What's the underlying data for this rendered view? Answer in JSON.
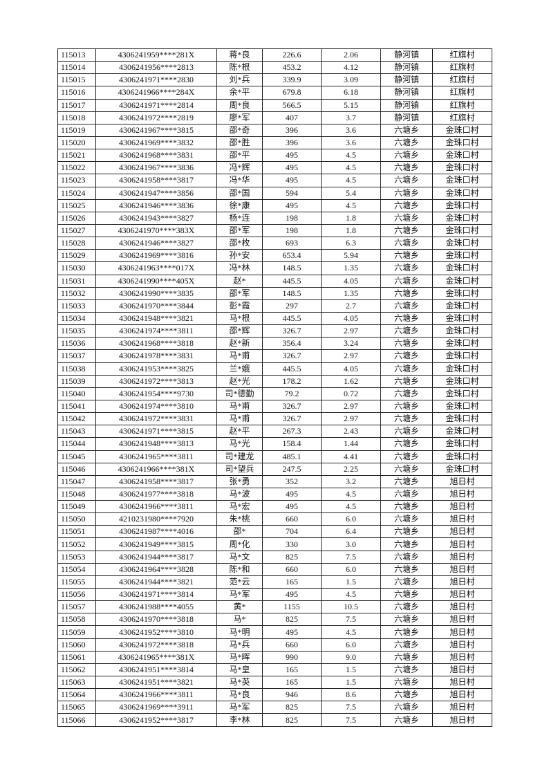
{
  "table": {
    "rows": [
      [
        "115013",
        "4306241959****281X",
        "蒋*良",
        "226.6",
        "2.06",
        "静河镇",
        "红旗村"
      ],
      [
        "115014",
        "4306241956****2813",
        "陈*根",
        "453.2",
        "4.12",
        "静河镇",
        "红旗村"
      ],
      [
        "115015",
        "4306241971****2830",
        "刘*兵",
        "339.9",
        "3.09",
        "静河镇",
        "红旗村"
      ],
      [
        "115016",
        "4306241966****284X",
        "余*平",
        "679.8",
        "6.18",
        "静河镇",
        "红旗村"
      ],
      [
        "115017",
        "4306241971****2814",
        "周*良",
        "566.5",
        "5.15",
        "静河镇",
        "红旗村"
      ],
      [
        "115018",
        "4306241972****2819",
        "廖*军",
        "407",
        "3.7",
        "静河镇",
        "红旗村"
      ],
      [
        "115019",
        "4306241967****3815",
        "邵*奇",
        "396",
        "3.6",
        "六塘乡",
        "金珠口村"
      ],
      [
        "115020",
        "4306241969****3832",
        "邵*胜",
        "396",
        "3.6",
        "六塘乡",
        "金珠口村"
      ],
      [
        "115021",
        "4306241968****3831",
        "邵*平",
        "495",
        "4.5",
        "六塘乡",
        "金珠口村"
      ],
      [
        "115022",
        "4306241967****3836",
        "冯*辉",
        "495",
        "4.5",
        "六塘乡",
        "金珠口村"
      ],
      [
        "115023",
        "4306241958****3817",
        "冯*华",
        "495",
        "4.5",
        "六塘乡",
        "金珠口村"
      ],
      [
        "115024",
        "4306241947****3856",
        "邵*国",
        "594",
        "5.4",
        "六塘乡",
        "金珠口村"
      ],
      [
        "115025",
        "4306241946****3836",
        "徐*康",
        "495",
        "4.5",
        "六塘乡",
        "金珠口村"
      ],
      [
        "115026",
        "4306241943****3827",
        "杨*连",
        "198",
        "1.8",
        "六塘乡",
        "金珠口村"
      ],
      [
        "115027",
        "4306241970****383X",
        "邵*军",
        "198",
        "1.8",
        "六塘乡",
        "金珠口村"
      ],
      [
        "115028",
        "4306241946****3827",
        "邵*枚",
        "693",
        "6.3",
        "六塘乡",
        "金珠口村"
      ],
      [
        "115029",
        "4306241969****3816",
        "孙*安",
        "653.4",
        "5.94",
        "六塘乡",
        "金珠口村"
      ],
      [
        "115030",
        "4306241963****017X",
        "冯*林",
        "148.5",
        "1.35",
        "六塘乡",
        "金珠口村"
      ],
      [
        "115031",
        "4306241990****405X",
        "赵*",
        "445.5",
        "4.05",
        "六塘乡",
        "金珠口村"
      ],
      [
        "115032",
        "4306241990****3835",
        "邵*军",
        "148.5",
        "1.35",
        "六塘乡",
        "金珠口村"
      ],
      [
        "115033",
        "4306241970****3844",
        "彭*霞",
        "297",
        "2.7",
        "六塘乡",
        "金珠口村"
      ],
      [
        "115034",
        "4306241948****3821",
        "马*根",
        "445.5",
        "4.05",
        "六塘乡",
        "金珠口村"
      ],
      [
        "115035",
        "4306241974****3811",
        "邵*辉",
        "326.7",
        "2.97",
        "六塘乡",
        "金珠口村"
      ],
      [
        "115036",
        "4306241968****3818",
        "赵*新",
        "356.4",
        "3.24",
        "六塘乡",
        "金珠口村"
      ],
      [
        "115037",
        "4306241978****3831",
        "马*甫",
        "326.7",
        "2.97",
        "六塘乡",
        "金珠口村"
      ],
      [
        "115038",
        "4306241953****3825",
        "兰*娥",
        "445.5",
        "4.05",
        "六塘乡",
        "金珠口村"
      ],
      [
        "115039",
        "4306241972****3813",
        "赵*光",
        "178.2",
        "1.62",
        "六塘乡",
        "金珠口村"
      ],
      [
        "115040",
        "4306241954****9730",
        "司*德勤",
        "79.2",
        "0.72",
        "六塘乡",
        "金珠口村"
      ],
      [
        "115041",
        "4306241974****3810",
        "马*甫",
        "326.7",
        "2.97",
        "六塘乡",
        "金珠口村"
      ],
      [
        "115042",
        "4306241972****3831",
        "马*甫",
        "326.7",
        "2.97",
        "六塘乡",
        "金珠口村"
      ],
      [
        "115043",
        "4306241971****3815",
        "赵*平",
        "267.3",
        "2.43",
        "六塘乡",
        "金珠口村"
      ],
      [
        "115044",
        "4306241948****3813",
        "马*光",
        "158.4",
        "1.44",
        "六塘乡",
        "金珠口村"
      ],
      [
        "115045",
        "4306241965****3811",
        "司*建龙",
        "485.1",
        "4.41",
        "六塘乡",
        "金珠口村"
      ],
      [
        "115046",
        "4306241966****381X",
        "司*望兵",
        "247.5",
        "2.25",
        "六塘乡",
        "金珠口村"
      ],
      [
        "115047",
        "4306241958****3817",
        "张*勇",
        "352",
        "3.2",
        "六塘乡",
        "旭日村"
      ],
      [
        "115048",
        "4306241977****3818",
        "马*波",
        "495",
        "4.5",
        "六塘乡",
        "旭日村"
      ],
      [
        "115049",
        "4306241966****3811",
        "马*宏",
        "495",
        "4.5",
        "六塘乡",
        "旭日村"
      ],
      [
        "115050",
        "4210231980****7920",
        "朱*桃",
        "660",
        "6.0",
        "六塘乡",
        "旭日村"
      ],
      [
        "115051",
        "4306241987****4016",
        "邵*",
        "704",
        "6.4",
        "六塘乡",
        "旭日村"
      ],
      [
        "115052",
        "4306241949****3815",
        "周*化",
        "330",
        "3.0",
        "六塘乡",
        "旭日村"
      ],
      [
        "115053",
        "4306241944****3817",
        "马*文",
        "825",
        "7.5",
        "六塘乡",
        "旭日村"
      ],
      [
        "115054",
        "4306241964****3828",
        "陈*和",
        "660",
        "6.0",
        "六塘乡",
        "旭日村"
      ],
      [
        "115055",
        "4306241944****3821",
        "范*云",
        "165",
        "1.5",
        "六塘乡",
        "旭日村"
      ],
      [
        "115056",
        "4306241971****3814",
        "马*军",
        "495",
        "4.5",
        "六塘乡",
        "旭日村"
      ],
      [
        "115057",
        "4306241988****4055",
        "黄*",
        "1155",
        "10.5",
        "六塘乡",
        "旭日村"
      ],
      [
        "115058",
        "4306241970****3818",
        "马*",
        "825",
        "7.5",
        "六塘乡",
        "旭日村"
      ],
      [
        "115059",
        "4306241952****3810",
        "马*明",
        "495",
        "4.5",
        "六塘乡",
        "旭日村"
      ],
      [
        "115060",
        "4306241972****3818",
        "马*兵",
        "660",
        "6.0",
        "六塘乡",
        "旭日村"
      ],
      [
        "115061",
        "4306241965****381X",
        "马*晖",
        "990",
        "9.0",
        "六塘乡",
        "旭日村"
      ],
      [
        "115062",
        "4306241951****3814",
        "马*皇",
        "165",
        "1.5",
        "六塘乡",
        "旭日村"
      ],
      [
        "115063",
        "4306241951****3821",
        "马*英",
        "165",
        "1.5",
        "六塘乡",
        "旭日村"
      ],
      [
        "115064",
        "4306241966****3811",
        "马*良",
        "946",
        "8.6",
        "六塘乡",
        "旭日村"
      ],
      [
        "115065",
        "4306241969****3911",
        "马*军",
        "825",
        "7.5",
        "六塘乡",
        "旭日村"
      ],
      [
        "115066",
        "4306241952****3817",
        "李*林",
        "825",
        "7.5",
        "六塘乡",
        "旭日村"
      ]
    ]
  }
}
